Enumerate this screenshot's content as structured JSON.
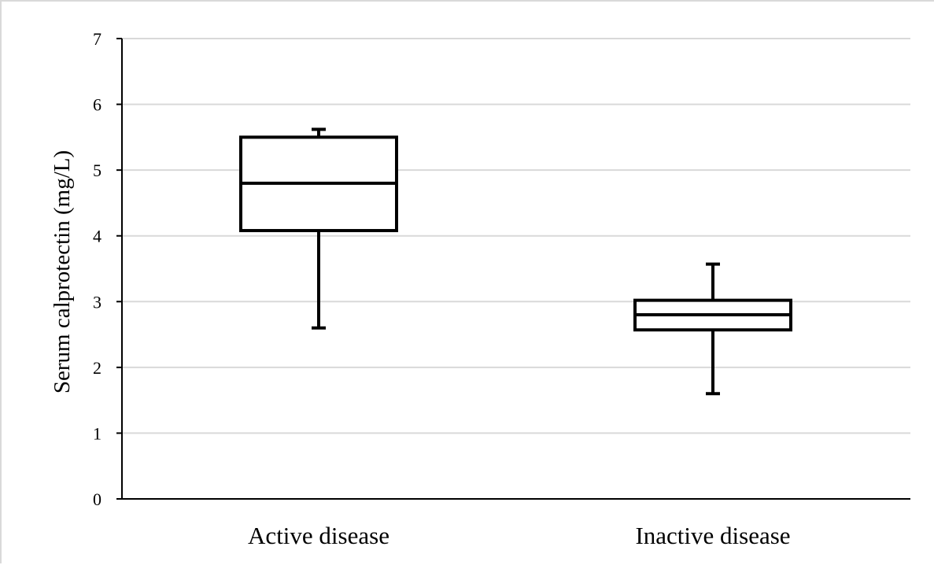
{
  "chart_data": {
    "type": "boxplot",
    "title": "",
    "xlabel": "",
    "ylabel": "Serum calprotectin (mg/L)",
    "ylim": [
      0,
      7
    ],
    "yticks": [
      0,
      1,
      2,
      3,
      4,
      5,
      6,
      7
    ],
    "grid": true,
    "legend": "none",
    "categories": [
      "Active disease",
      "Inactive disease"
    ],
    "boxes": [
      {
        "category": "Active disease",
        "min": 2.6,
        "q1": 4.08,
        "median": 4.8,
        "q3": 5.5,
        "max": 5.62
      },
      {
        "category": "Inactive disease",
        "min": 1.6,
        "q1": 2.57,
        "median": 2.8,
        "q3": 3.02,
        "max": 3.57
      }
    ],
    "colors": {
      "box_stroke": "#000000",
      "box_fill": "#ffffff",
      "grid": "#d9d9d9"
    }
  }
}
